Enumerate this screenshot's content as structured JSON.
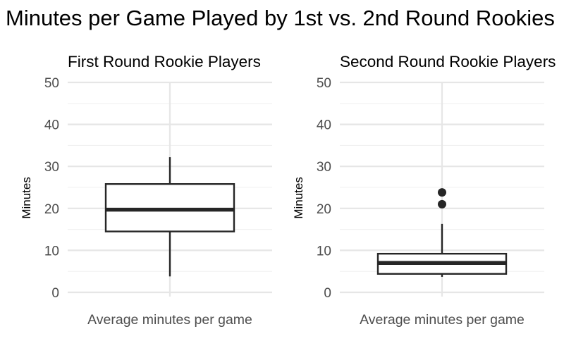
{
  "title": "Minutes per Game Played by 1st vs. 2nd Round Rookies",
  "chart_data": {
    "type": "boxplot",
    "title": "Minutes per Game Played by 1st vs. 2nd Round Rookies",
    "ylim": [
      0,
      50
    ],
    "y_ticks": [
      0,
      10,
      20,
      30,
      40,
      50
    ],
    "grid": true,
    "panels": [
      {
        "title": "First Round Rookie Players",
        "xlabel": "",
        "ylabel": "Minutes",
        "category": "Average minutes per game",
        "min": 3.8,
        "q1": 14.5,
        "median": 19.7,
        "q3": 25.8,
        "max": 32.2,
        "outliers": []
      },
      {
        "title": "Second Round Rookie Players",
        "xlabel": "",
        "ylabel": "Minutes",
        "category": "Average minutes per game",
        "min": 3.7,
        "q1": 4.4,
        "median": 7.0,
        "q3": 9.2,
        "max": 16.3,
        "outliers": [
          21.0,
          23.8
        ]
      }
    ]
  }
}
